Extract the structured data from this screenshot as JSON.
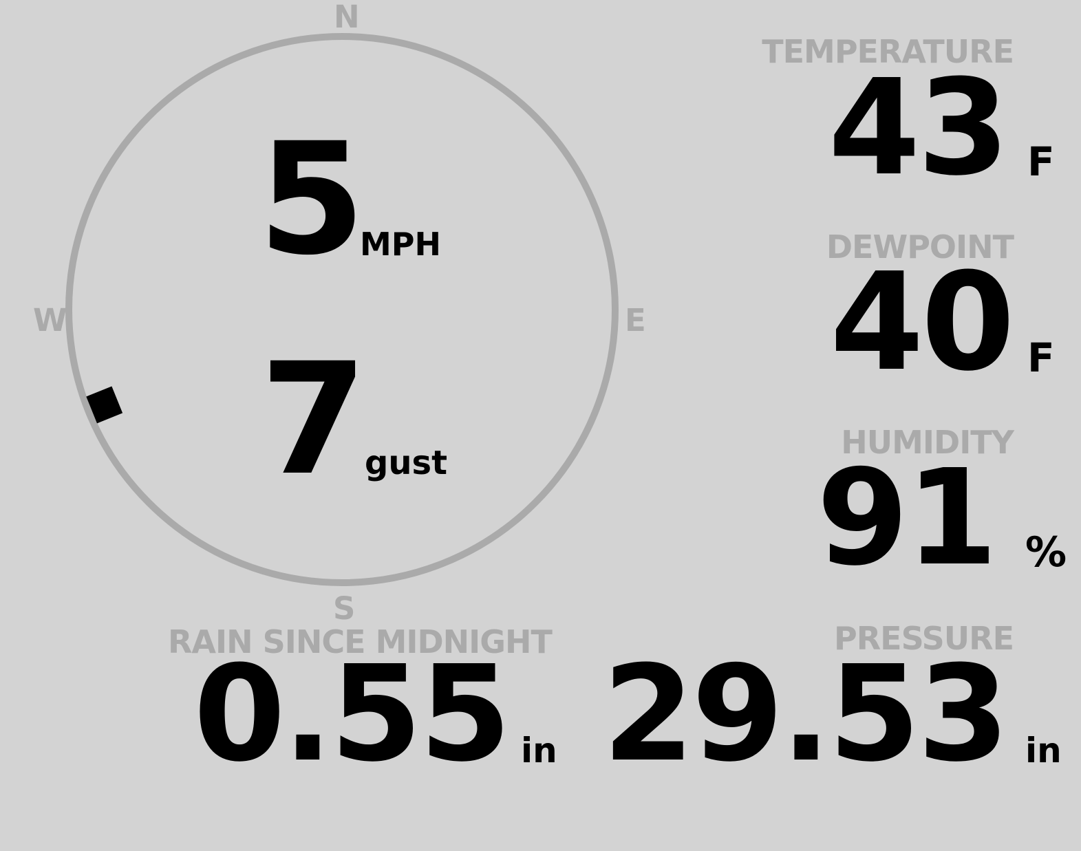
{
  "wind": {
    "speed": "5",
    "speed_unit": "MPH",
    "gust": "7",
    "gust_label": "gust",
    "wind_direction_deg": 248,
    "compass": {
      "north": "N",
      "east": "E",
      "south": "S",
      "west": "W"
    }
  },
  "temperature": {
    "label": "TEMPERATURE",
    "value": "43",
    "unit": "F"
  },
  "dewpoint": {
    "label": "DEWPOINT",
    "value": "40",
    "unit": "F"
  },
  "humidity": {
    "label": "HUMIDITY",
    "value": "91",
    "unit": "%"
  },
  "rain": {
    "label": "RAIN SINCE MIDNIGHT",
    "value": "0.55",
    "unit": "in"
  },
  "pressure": {
    "label": "PRESSURE",
    "value": "29.53",
    "unit": "in"
  },
  "colors": {
    "background": "#d3d3d3",
    "label": "#aaaaaa",
    "value": "#000000",
    "ring": "#aaaaaa"
  }
}
